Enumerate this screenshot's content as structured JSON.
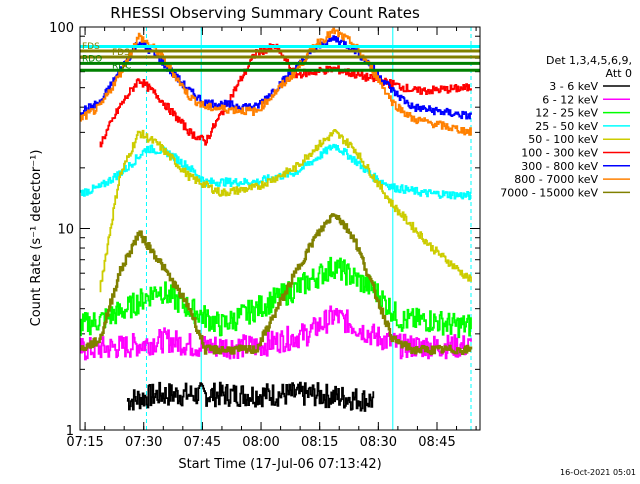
{
  "chart_data": {
    "type": "line",
    "title": "RHESSI Observing Summary Count Rates",
    "xlabel": "Start Time (17-Jul-06 07:13:42)",
    "ylabel": "Count Rate (s⁻¹ detector⁻¹)",
    "y_scale": "log",
    "ylim": [
      1,
      100
    ],
    "xlim_minutes": [
      0,
      102.3
    ],
    "x_ticks": [
      "07:15",
      "07:30",
      "07:45",
      "08:00",
      "08:15",
      "08:30",
      "08:45"
    ],
    "x_tick_minutes": [
      1.3,
      16.3,
      31.3,
      46.3,
      61.3,
      76.3,
      91.3
    ],
    "y_ticks": [
      "1",
      "10",
      "100"
    ],
    "legend_position": "right",
    "legend_title_lines": [
      "Det 1,3,4,5,6,9,",
      "Att 0"
    ],
    "series": [
      {
        "name": "3 - 6 keV",
        "color": "#000000",
        "x": [
          12,
          20,
          60,
          75
        ],
        "y": [
          1.4,
          1.5,
          1.5,
          1.4
        ]
      },
      {
        "name": "6 - 12 keV",
        "color": "#ff00ff",
        "x": [
          0,
          12,
          22,
          30,
          45,
          58,
          65,
          74,
          82,
          94,
          100
        ],
        "y": [
          2.5,
          2.6,
          2.8,
          2.6,
          2.6,
          3.0,
          3.7,
          3.0,
          2.6,
          2.6,
          2.6
        ]
      },
      {
        "name": "12 - 25 keV",
        "color": "#00ff00",
        "x": [
          0,
          5,
          12,
          20,
          28,
          36,
          45,
          55,
          65,
          75,
          82,
          90,
          96,
          100
        ],
        "y": [
          3.3,
          3.5,
          4.0,
          5.0,
          4.0,
          3.3,
          4.0,
          5.0,
          6.5,
          5.0,
          3.5,
          3.5,
          3.3,
          3.3
        ]
      },
      {
        "name": "25 - 50 keV",
        "color": "#00ffff",
        "x": [
          0,
          5,
          12,
          17,
          22,
          28,
          32,
          45,
          55,
          60,
          65,
          70,
          75,
          80,
          88,
          100
        ],
        "y": [
          15,
          16,
          20,
          25,
          24,
          20,
          17,
          17,
          19,
          22,
          26,
          22,
          18,
          16,
          15,
          14.5
        ]
      },
      {
        "name": "50 - 100 keV",
        "color": "#cccc00",
        "x": [
          5,
          10,
          15,
          20,
          28,
          36,
          45,
          55,
          60,
          65,
          70,
          75,
          80,
          90,
          100
        ],
        "y": [
          5,
          18,
          30,
          26,
          18,
          15,
          16,
          20,
          25,
          30,
          25,
          18,
          13,
          8,
          5.5
        ]
      },
      {
        "name": "100 - 300 keV",
        "color": "#ff0000",
        "x": [
          5,
          10,
          15,
          20,
          28,
          32,
          45,
          50,
          55,
          65,
          75,
          80,
          86,
          100
        ],
        "y": [
          26,
          40,
          55,
          45,
          30,
          27,
          75,
          80,
          58,
          62,
          55,
          52,
          48,
          50
        ]
      },
      {
        "name": "300 - 800 keV",
        "color": "#0000ff",
        "x": [
          0,
          5,
          10,
          15,
          20,
          28,
          32,
          45,
          55,
          60,
          65,
          70,
          75,
          80,
          85,
          100
        ],
        "y": [
          38,
          42,
          60,
          85,
          70,
          48,
          42,
          40,
          62,
          78,
          88,
          78,
          62,
          48,
          40,
          36
        ]
      },
      {
        "name": "800 - 7000 keV",
        "color": "#ff8000",
        "x": [
          0,
          5,
          10,
          15,
          20,
          28,
          32,
          45,
          55,
          60,
          65,
          70,
          75,
          80,
          85,
          100
        ],
        "y": [
          35,
          40,
          58,
          90,
          75,
          45,
          40,
          38,
          60,
          82,
          95,
          82,
          60,
          42,
          35,
          30
        ]
      },
      {
        "name": "7000 - 15000 keV",
        "color": "#808000",
        "x": [
          0,
          5,
          10,
          15,
          20,
          28,
          32,
          40,
          45,
          55,
          60,
          65,
          70,
          75,
          80,
          85,
          90,
          100
        ],
        "y": [
          2.5,
          2.8,
          6,
          9.5,
          7,
          4,
          2.5,
          2.5,
          2.5,
          6,
          9,
          12,
          9,
          5,
          2.8,
          2.5,
          2.5,
          2.5
        ]
      }
    ],
    "horizontal_lines": [
      {
        "label": "FDS",
        "color": "#808000",
        "y": 76
      },
      {
        "label": "FDS",
        "color": "#808000",
        "y": 71
      },
      {
        "label": "RDO",
        "color": "#008000",
        "y": 66
      },
      {
        "label": "RDC",
        "color": "#008000",
        "y": 61
      }
    ],
    "cyan_line": {
      "color": "#00ffff",
      "y": 80
    },
    "vertical_lines": [
      {
        "minute": 0,
        "style": "solid"
      },
      {
        "minute": 17,
        "style": "dashed"
      },
      {
        "minute": 31,
        "style": "solid"
      },
      {
        "minute": 80,
        "style": "solid"
      },
      {
        "minute": 100,
        "style": "dashed"
      }
    ]
  },
  "footer_timestamp": "16-Oct-2021 05:01"
}
